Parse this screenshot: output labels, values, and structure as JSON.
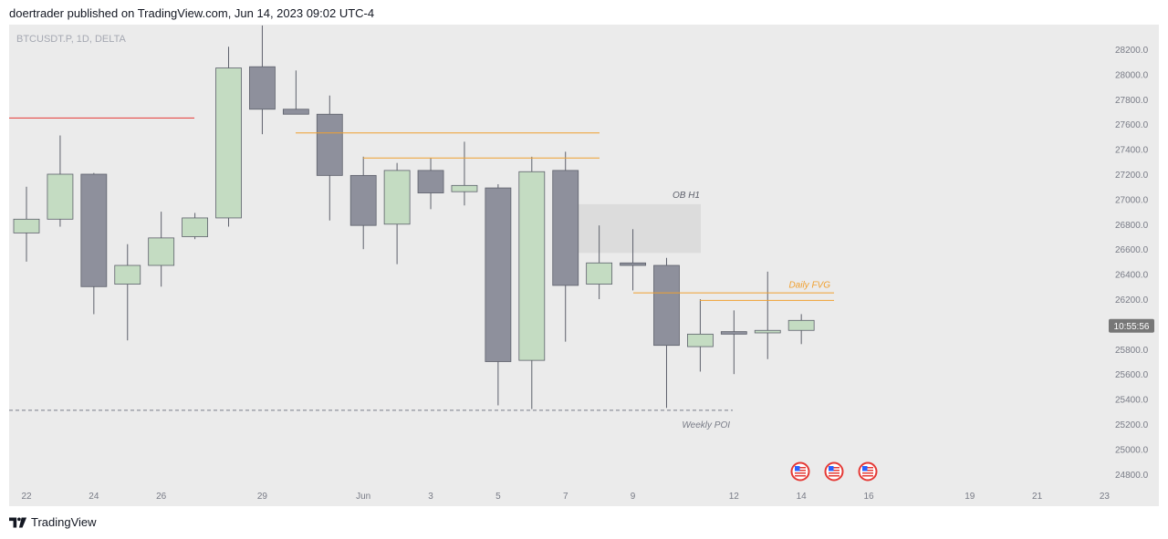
{
  "header": {
    "published": "doertrader published on TradingView.com, Jun 14, 2023 09:02 UTC-4"
  },
  "footer": {
    "brand": "TradingView"
  },
  "colors": {
    "bg": "#ebebeb",
    "up": "#c4dcc2",
    "down": "#8e909c",
    "wick": "#5d606b",
    "orange": "#f0a030",
    "red": "#e53935",
    "ob": "#dcdcdc",
    "time_badge": "#777777"
  },
  "chart_data": {
    "type": "candlestick",
    "symbol": "BTCUSDT.P, 1D, DELTA",
    "ylim": [
      24700,
      28400
    ],
    "y_ticks": [
      "28200.0",
      "28000.0",
      "27800.0",
      "27600.0",
      "27400.0",
      "27200.0",
      "27000.0",
      "26800.0",
      "26600.0",
      "26400.0",
      "26200.0",
      "26000.0",
      "25800.0",
      "25600.0",
      "25400.0",
      "25200.0",
      "25000.0",
      "24800.0"
    ],
    "x_ticks": [
      {
        "label": "22",
        "i": 0
      },
      {
        "label": "24",
        "i": 2
      },
      {
        "label": "26",
        "i": 4
      },
      {
        "label": "29",
        "i": 7
      },
      {
        "label": "Jun",
        "i": 10
      },
      {
        "label": "3",
        "i": 12
      },
      {
        "label": "5",
        "i": 14
      },
      {
        "label": "7",
        "i": 16
      },
      {
        "label": "9",
        "i": 18
      },
      {
        "label": "12",
        "i": 21
      },
      {
        "label": "14",
        "i": 23
      },
      {
        "label": "16",
        "i": 25
      },
      {
        "label": "19",
        "i": 28
      },
      {
        "label": "21",
        "i": 30
      },
      {
        "label": "23",
        "i": 32
      }
    ],
    "candles": [
      {
        "o": 26730,
        "h": 27100,
        "l": 26500,
        "c": 26840
      },
      {
        "o": 26840,
        "h": 27510,
        "l": 26780,
        "c": 27200
      },
      {
        "o": 27200,
        "h": 27210,
        "l": 26080,
        "c": 26300
      },
      {
        "o": 26320,
        "h": 26640,
        "l": 25870,
        "c": 26470
      },
      {
        "o": 26470,
        "h": 26900,
        "l": 26300,
        "c": 26690
      },
      {
        "o": 26700,
        "h": 26890,
        "l": 26680,
        "c": 26850
      },
      {
        "o": 26850,
        "h": 28220,
        "l": 26780,
        "c": 28050
      },
      {
        "o": 28060,
        "h": 28390,
        "l": 27520,
        "c": 27720
      },
      {
        "o": 27720,
        "h": 28030,
        "l": 27680,
        "c": 27680
      },
      {
        "o": 27680,
        "h": 27830,
        "l": 26830,
        "c": 27190
      },
      {
        "o": 27190,
        "h": 27340,
        "l": 26600,
        "c": 26790
      },
      {
        "o": 26800,
        "h": 27290,
        "l": 26480,
        "c": 27230
      },
      {
        "o": 27230,
        "h": 27330,
        "l": 26920,
        "c": 27050
      },
      {
        "o": 27060,
        "h": 27460,
        "l": 26950,
        "c": 27110
      },
      {
        "o": 27090,
        "h": 27120,
        "l": 25350,
        "c": 25700
      },
      {
        "o": 25710,
        "h": 27340,
        "l": 25320,
        "c": 27220
      },
      {
        "o": 27230,
        "h": 27380,
        "l": 25860,
        "c": 26310
      },
      {
        "o": 26320,
        "h": 26790,
        "l": 26200,
        "c": 26490
      },
      {
        "o": 26490,
        "h": 26760,
        "l": 26270,
        "c": 26470
      },
      {
        "o": 26470,
        "h": 26530,
        "l": 25330,
        "c": 25830
      },
      {
        "o": 25820,
        "h": 26200,
        "l": 25620,
        "c": 25920
      },
      {
        "o": 25940,
        "h": 26110,
        "l": 25600,
        "c": 25920
      },
      {
        "o": 25930,
        "h": 26420,
        "l": 25720,
        "c": 25950
      },
      {
        "o": 25950,
        "h": 26080,
        "l": 25840,
        "c": 26030
      }
    ],
    "annotations": {
      "ob_label": "OB H1",
      "fvg_label": "Daily FVG",
      "poi_label": "Weekly POI",
      "price_badge": "10:55:56"
    }
  }
}
